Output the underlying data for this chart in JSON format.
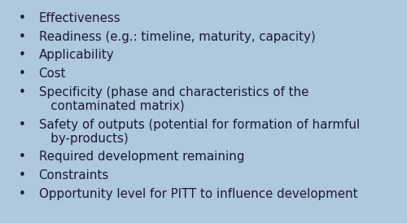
{
  "background_color": "#aec8de",
  "border_color": "#7a9ab8",
  "text_color": "#1a1a2e",
  "bullet_items_single": [
    [
      "Effectiveness"
    ],
    [
      "Readiness (e.g.: timeline, maturity, capacity)"
    ],
    [
      "Applicability"
    ],
    [
      "Cost"
    ],
    [
      "Specificity (phase and characteristics of the",
      "   contaminated matrix)"
    ],
    [
      "Safety of outputs (potential for formation of harmful",
      "   by-products)"
    ],
    [
      "Required development remaining"
    ],
    [
      "Constraints"
    ],
    [
      "Opportunity level for PITT to influence development"
    ]
  ],
  "font_size": 10.8,
  "bullet_char": "•",
  "figwidth": 5.0,
  "figheight": 2.74,
  "dpi": 100
}
